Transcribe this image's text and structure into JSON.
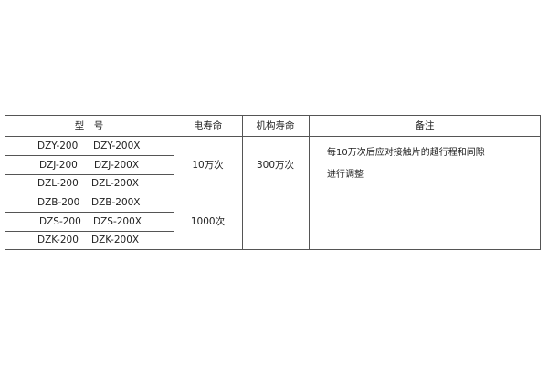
{
  "table": {
    "headers": [
      "型　号",
      "电寿命",
      "机构寿命",
      "备注"
    ],
    "rows": [
      {
        "model_a": "DZY-200",
        "model_b": "DZY-200X"
      },
      {
        "model_a": "DZJ-200",
        "model_b": "DZJ-200X"
      },
      {
        "model_a": "DZL-200",
        "model_b": "DZL-200X"
      },
      {
        "model_a": "DZB-200",
        "model_b": "DZB-200X"
      },
      {
        "model_a": "DZS-200",
        "model_b": "DZS-200X"
      },
      {
        "model_a": "DZK-200",
        "model_b": "DZK-200X"
      }
    ],
    "groups": [
      {
        "electrical_life": "10万次",
        "mechanical_life": "300万次",
        "note_line1": "每10万次后应对接触片的超行程和间隙",
        "note_line2": "进行调整"
      },
      {
        "electrical_life": "1000次",
        "mechanical_life": "",
        "note_line1": "",
        "note_line2": ""
      }
    ]
  }
}
